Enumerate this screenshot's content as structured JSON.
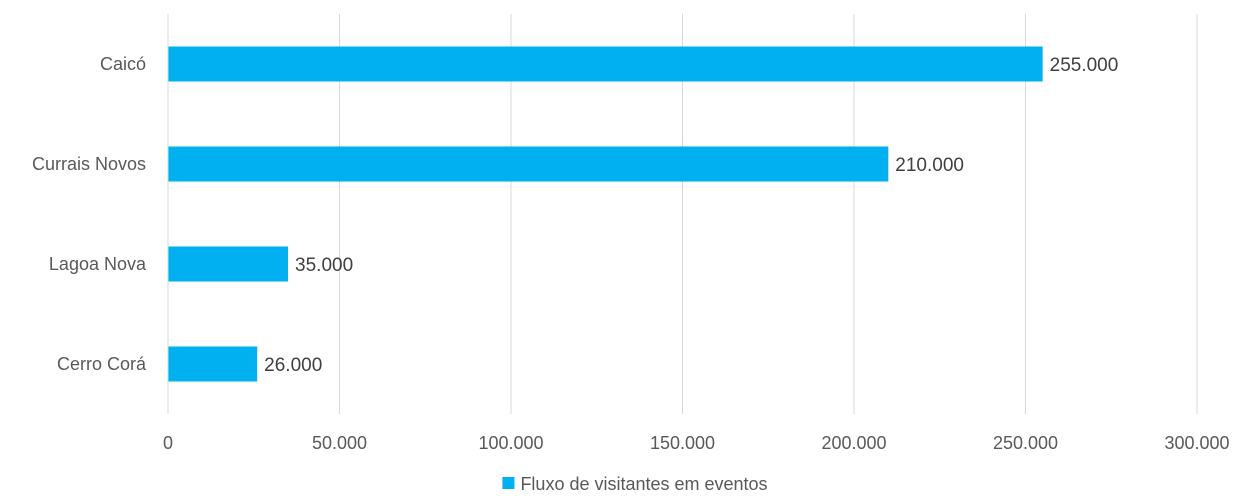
{
  "chart_data": {
    "type": "bar",
    "orientation": "horizontal",
    "categories": [
      "Caicó",
      "Currais Novos",
      "Lagoa Nova",
      "Cerro Corá"
    ],
    "series": [
      {
        "name": "Fluxo de visitantes em eventos",
        "values": [
          255000,
          210000,
          35000,
          26000
        ],
        "data_labels": [
          "255.000",
          "210.000",
          "35.000",
          "26.000"
        ],
        "color": "#00B0F0"
      }
    ],
    "x_ticks": [
      {
        "value": 0,
        "label": "0"
      },
      {
        "value": 50000,
        "label": "50.000"
      },
      {
        "value": 100000,
        "label": "100.000"
      },
      {
        "value": 150000,
        "label": "150.000"
      },
      {
        "value": 200000,
        "label": "200.000"
      },
      {
        "value": 250000,
        "label": "250.000"
      },
      {
        "value": 300000,
        "label": "300.000"
      }
    ],
    "xlim": [
      0,
      300000
    ],
    "title": "",
    "xlabel": "",
    "ylabel": "",
    "grid": "vertical",
    "legend_position": "bottom",
    "colors": {
      "grid": "#D9D9D9",
      "axis": "#D9D9D9"
    }
  }
}
